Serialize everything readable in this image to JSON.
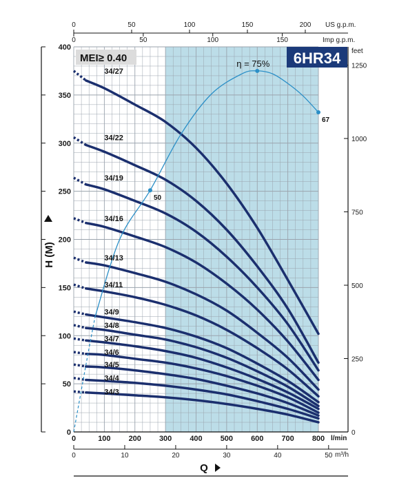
{
  "chart_data": {
    "type": "line",
    "title": "",
    "model_badge": "6HR34",
    "mei_label": "MEI≥ 0.40",
    "xlabel": "Q",
    "ylabel": "H (M)",
    "x_unit_main": "l/min",
    "x_unit_bottom": "m³/h",
    "x_unit_top1": "US g.p.m.",
    "x_unit_top2": "Imp g.p.m.",
    "y_unit_right": "feet",
    "xlim": [
      0,
      800
    ],
    "ylim": [
      0,
      400
    ],
    "shaded_range": [
      300,
      800
    ],
    "x_ticks": [
      "0",
      "100",
      "200",
      "300",
      "400",
      "500",
      "600",
      "700",
      "800"
    ],
    "y_ticks": [
      "0",
      "50",
      "100",
      "150",
      "200",
      "250",
      "300",
      "350",
      "400"
    ],
    "m3h_ticks": [
      "0",
      "10",
      "20",
      "30",
      "40",
      "50"
    ],
    "usgpm_ticks": [
      "0",
      "50",
      "100",
      "150",
      "200"
    ],
    "impgpm_ticks": [
      "0",
      "50",
      "100",
      "150"
    ],
    "feet_ticks": [
      "0",
      "250",
      "500",
      "750",
      "1000",
      "1250"
    ],
    "series": [
      {
        "name": "34/27",
        "dashed": [
          [
            0,
            375
          ],
          [
            40,
            365
          ]
        ],
        "points": [
          [
            40,
            365
          ],
          [
            100,
            357
          ],
          [
            200,
            340
          ],
          [
            300,
            322
          ],
          [
            400,
            295
          ],
          [
            500,
            258
          ],
          [
            600,
            212
          ],
          [
            700,
            158
          ],
          [
            800,
            102
          ]
        ]
      },
      {
        "name": "34/22",
        "dashed": [
          [
            0,
            306
          ],
          [
            40,
            298
          ]
        ],
        "points": [
          [
            40,
            298
          ],
          [
            100,
            291
          ],
          [
            200,
            277
          ],
          [
            300,
            262
          ],
          [
            400,
            240
          ],
          [
            500,
            210
          ],
          [
            600,
            172
          ],
          [
            700,
            128
          ],
          [
            800,
            72
          ]
        ]
      },
      {
        "name": "34/19",
        "dashed": [
          [
            0,
            264
          ],
          [
            40,
            257
          ]
        ],
        "points": [
          [
            40,
            257
          ],
          [
            100,
            252
          ],
          [
            200,
            240
          ],
          [
            300,
            227
          ],
          [
            400,
            208
          ],
          [
            500,
            182
          ],
          [
            600,
            150
          ],
          [
            700,
            112
          ],
          [
            800,
            64
          ]
        ]
      },
      {
        "name": "34/16",
        "dashed": [
          [
            0,
            222
          ],
          [
            40,
            217
          ]
        ],
        "points": [
          [
            40,
            217
          ],
          [
            100,
            213
          ],
          [
            200,
            203
          ],
          [
            300,
            192
          ],
          [
            400,
            176
          ],
          [
            500,
            154
          ],
          [
            600,
            127
          ],
          [
            700,
            94
          ],
          [
            800,
            54
          ]
        ]
      },
      {
        "name": "34/13",
        "dashed": [
          [
            0,
            181
          ],
          [
            40,
            176
          ]
        ],
        "points": [
          [
            40,
            176
          ],
          [
            100,
            173
          ],
          [
            200,
            165
          ],
          [
            300,
            156
          ],
          [
            400,
            143
          ],
          [
            500,
            126
          ],
          [
            600,
            103
          ],
          [
            700,
            77
          ],
          [
            800,
            44
          ]
        ]
      },
      {
        "name": "34/11",
        "dashed": [
          [
            0,
            153
          ],
          [
            40,
            149
          ]
        ],
        "points": [
          [
            40,
            149
          ],
          [
            100,
            146
          ],
          [
            200,
            140
          ],
          [
            300,
            132
          ],
          [
            400,
            121
          ],
          [
            500,
            106
          ],
          [
            600,
            87
          ],
          [
            700,
            65
          ],
          [
            800,
            37
          ]
        ]
      },
      {
        "name": "34/9",
        "dashed": [
          [
            0,
            125
          ],
          [
            40,
            122
          ]
        ],
        "points": [
          [
            40,
            122
          ],
          [
            100,
            119
          ],
          [
            200,
            114
          ],
          [
            300,
            108
          ],
          [
            400,
            99
          ],
          [
            500,
            87
          ],
          [
            600,
            71
          ],
          [
            700,
            53
          ],
          [
            800,
            31
          ]
        ]
      },
      {
        "name": "34/8",
        "dashed": [
          [
            0,
            111
          ],
          [
            40,
            108
          ]
        ],
        "points": [
          [
            40,
            108
          ],
          [
            100,
            106
          ],
          [
            200,
            101
          ],
          [
            300,
            96
          ],
          [
            400,
            88
          ],
          [
            500,
            77
          ],
          [
            600,
            63
          ],
          [
            700,
            47
          ],
          [
            800,
            27
          ]
        ]
      },
      {
        "name": "34/7",
        "dashed": [
          [
            0,
            97
          ],
          [
            40,
            95
          ]
        ],
        "points": [
          [
            40,
            95
          ],
          [
            100,
            93
          ],
          [
            200,
            89
          ],
          [
            300,
            84
          ],
          [
            400,
            77
          ],
          [
            500,
            67
          ],
          [
            600,
            55
          ],
          [
            700,
            41
          ],
          [
            800,
            24
          ]
        ]
      },
      {
        "name": "34/6",
        "dashed": [
          [
            0,
            83
          ],
          [
            40,
            81
          ]
        ],
        "points": [
          [
            40,
            81
          ],
          [
            100,
            80
          ],
          [
            200,
            76
          ],
          [
            300,
            72
          ],
          [
            400,
            66
          ],
          [
            500,
            58
          ],
          [
            600,
            48
          ],
          [
            700,
            36
          ],
          [
            800,
            20
          ]
        ]
      },
      {
        "name": "34/5",
        "dashed": [
          [
            0,
            70
          ],
          [
            40,
            68
          ]
        ],
        "points": [
          [
            40,
            68
          ],
          [
            100,
            67
          ],
          [
            200,
            64
          ],
          [
            300,
            60
          ],
          [
            400,
            55
          ],
          [
            500,
            48
          ],
          [
            600,
            40
          ],
          [
            700,
            30
          ],
          [
            800,
            17
          ]
        ]
      },
      {
        "name": "34/4",
        "dashed": [
          [
            0,
            56
          ],
          [
            40,
            54
          ]
        ],
        "points": [
          [
            40,
            54
          ],
          [
            100,
            53
          ],
          [
            200,
            51
          ],
          [
            300,
            48
          ],
          [
            400,
            44
          ],
          [
            500,
            39
          ],
          [
            600,
            32
          ],
          [
            700,
            24
          ],
          [
            800,
            14
          ]
        ]
      },
      {
        "name": "34/3",
        "dashed": [
          [
            0,
            42
          ],
          [
            40,
            41
          ]
        ],
        "points": [
          [
            40,
            41
          ],
          [
            100,
            40
          ],
          [
            200,
            38
          ],
          [
            300,
            36
          ],
          [
            400,
            33
          ],
          [
            500,
            29
          ],
          [
            600,
            24
          ],
          [
            700,
            18
          ],
          [
            800,
            10
          ]
        ]
      }
    ],
    "efficiency_curve": {
      "label": "η = 75%",
      "dashed": [
        [
          0,
          0
        ],
        [
          40,
          70
        ],
        [
          70,
          120
        ]
      ],
      "points": [
        [
          70,
          120
        ],
        [
          150,
          200
        ],
        [
          250,
          251
        ],
        [
          350,
          309
        ],
        [
          450,
          351
        ],
        [
          550,
          372
        ],
        [
          600,
          375
        ],
        [
          650,
          372
        ],
        [
          700,
          362
        ],
        [
          750,
          349
        ],
        [
          800,
          332
        ]
      ],
      "markers": [
        {
          "x": 250,
          "y": 251,
          "label": "50"
        },
        {
          "x": 600,
          "y": 375,
          "label": ""
        },
        {
          "x": 800,
          "y": 332,
          "label": "67"
        }
      ]
    },
    "colors": {
      "curve": "#1b2f6e",
      "shade": "#bcdde8",
      "efficiency": "#2b8fc7",
      "badge": "#1b3a7a",
      "grid": "#9aa3ad"
    }
  }
}
